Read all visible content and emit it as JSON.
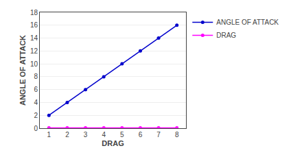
{
  "chart_data": {
    "type": "line",
    "x": [
      1,
      2,
      3,
      4,
      5,
      6,
      7,
      8
    ],
    "series": [
      {
        "name": "ANGLE OF ATTACK",
        "color": "#0000CC",
        "values": [
          2,
          4,
          6,
          8,
          10,
          12,
          14,
          16
        ]
      },
      {
        "name": "DRAG",
        "color": "#FF00FF",
        "values": [
          0.05,
          0.05,
          0.05,
          0.05,
          0.05,
          0.05,
          0.05,
          0.05
        ]
      }
    ],
    "xlabel": "DRAG",
    "ylabel": "ANGLE OF ATTACK",
    "xlim": [
      0.5,
      8.5
    ],
    "ylim": [
      0,
      18
    ],
    "xticks": [
      1,
      2,
      3,
      4,
      5,
      6,
      7,
      8
    ],
    "yticks": [
      0,
      2,
      4,
      6,
      8,
      10,
      12,
      14,
      16,
      18
    ],
    "grid": "y",
    "legend": "right",
    "marker": "circle"
  }
}
